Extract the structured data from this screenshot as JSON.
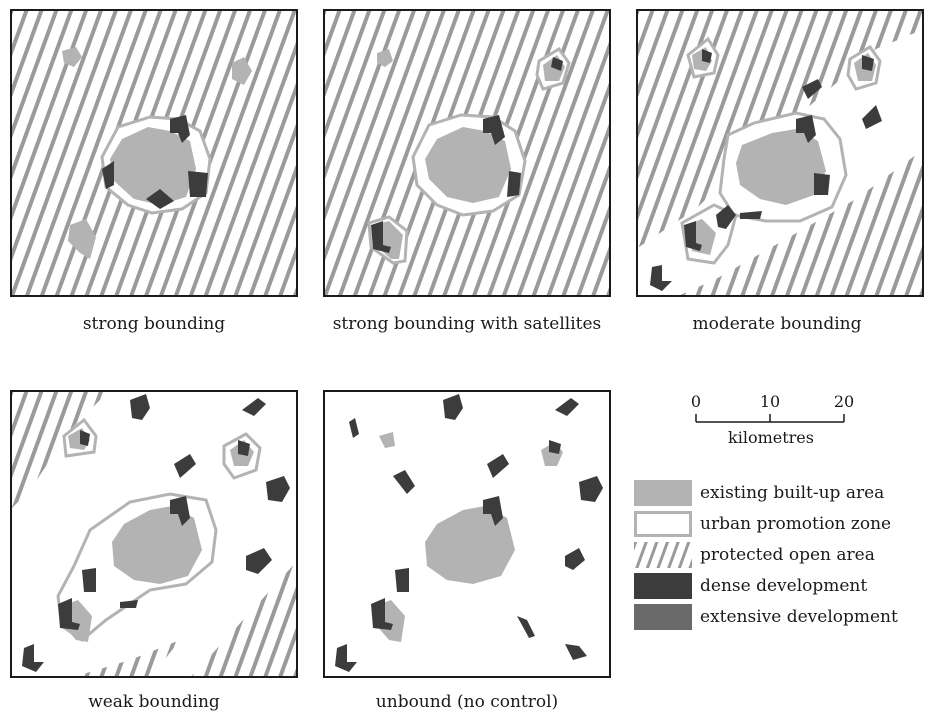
{
  "panels": [
    {
      "caption": "strong bounding"
    },
    {
      "caption": "strong bounding with satellites"
    },
    {
      "caption": "moderate bounding"
    },
    {
      "caption": "weak bounding"
    },
    {
      "caption": "unbound (no control)"
    }
  ],
  "scale": {
    "ticks": [
      "0",
      "10",
      "20"
    ],
    "unit": "kilometres"
  },
  "legend": {
    "items": [
      {
        "label": "existing built-up area",
        "type": "built-up"
      },
      {
        "label": "urban promotion zone",
        "type": "promotion"
      },
      {
        "label": "protected open area",
        "type": "protected"
      },
      {
        "label": "dense development",
        "type": "dense"
      },
      {
        "label": "extensive development",
        "type": "extensive"
      }
    ]
  },
  "colors": {
    "built_up": "#b3b3b3",
    "promotion_outline": "#b3b3b3",
    "hatch": "#9a9a9a",
    "dense": "#3c3c3c",
    "extensive": "#6a6a6a",
    "frame": "#1a1a1a"
  }
}
